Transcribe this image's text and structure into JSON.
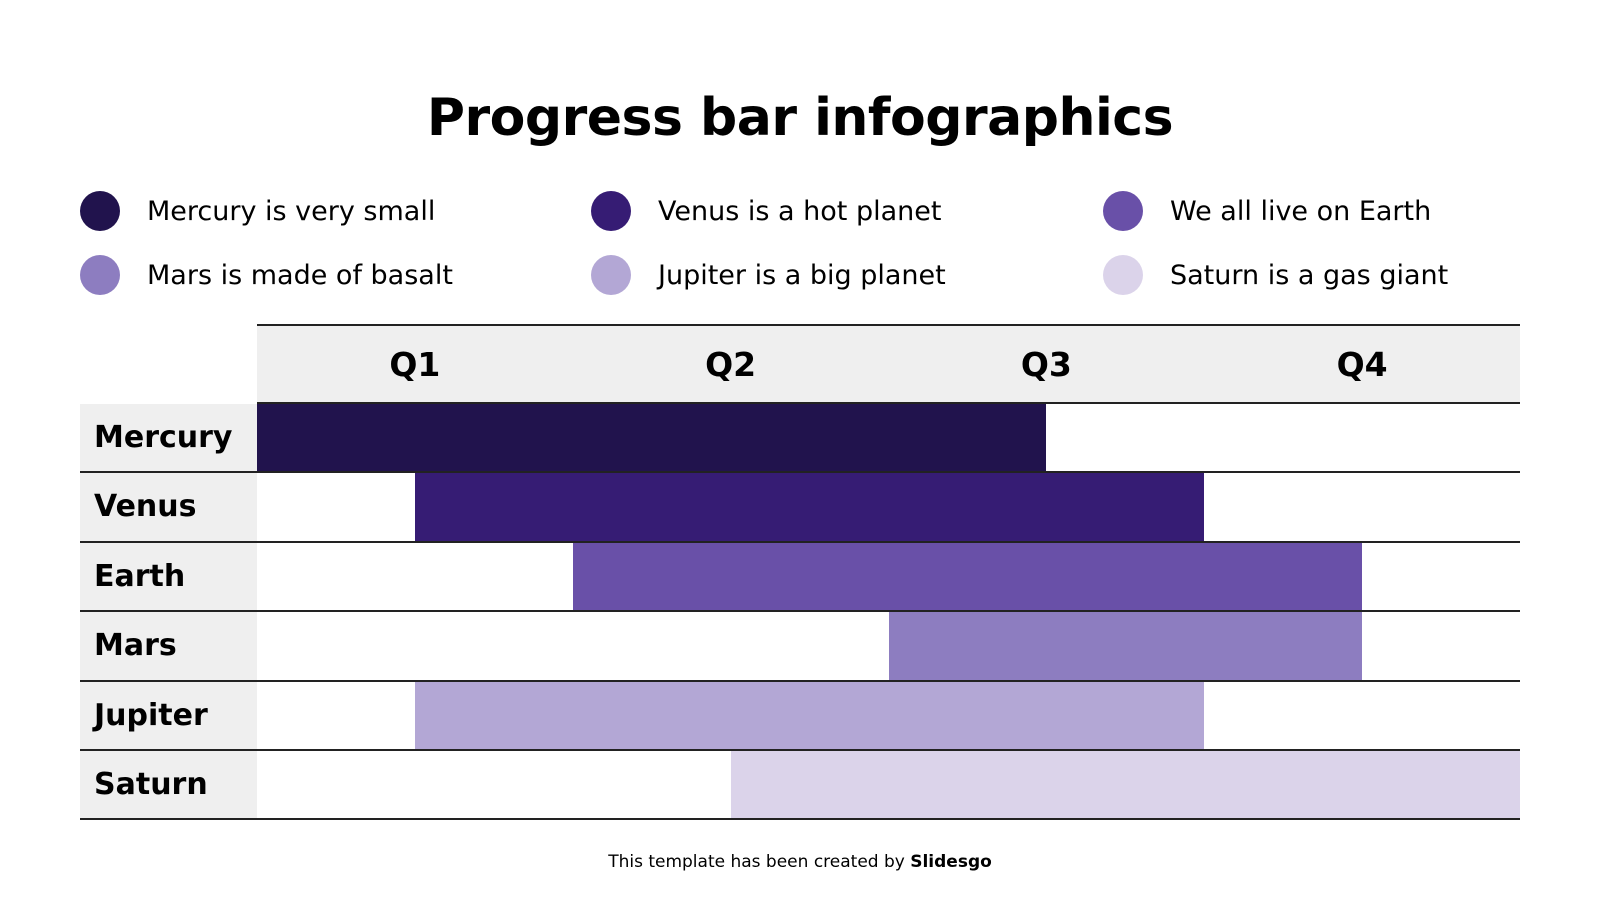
{
  "chart_data": {
    "type": "bar",
    "subtype": "gantt",
    "title": "Progress bar infographics",
    "categories": [
      "Q1",
      "Q2",
      "Q3",
      "Q4"
    ],
    "xlim_quarters": [
      0,
      4
    ],
    "rows": [
      {
        "label": "Mercury",
        "start": 0,
        "end": 2.5,
        "color": "#21134d"
      },
      {
        "label": "Venus",
        "start": 0.5,
        "end": 3,
        "color": "#361c74"
      },
      {
        "label": "Earth",
        "start": 1,
        "end": 3.5,
        "color": "#6950a8"
      },
      {
        "label": "Mars",
        "start": 2,
        "end": 3.5,
        "color": "#8d7dc0"
      },
      {
        "label": "Jupiter",
        "start": 0.5,
        "end": 3,
        "color": "#b3a7d5"
      },
      {
        "label": "Saturn",
        "start": 1.5,
        "end": 4,
        "color": "#dbd3ea"
      }
    ],
    "legend": [
      {
        "text": "Mercury is very small",
        "color": "#21134d"
      },
      {
        "text": "Venus is a hot planet",
        "color": "#361c74"
      },
      {
        "text": "We all live on Earth",
        "color": "#6950a8"
      },
      {
        "text": "Mars is made of basalt",
        "color": "#8d7dc0"
      },
      {
        "text": "Jupiter is a big planet",
        "color": "#b3a7d5"
      },
      {
        "text": "Saturn is a gas giant",
        "color": "#dbd3ea"
      }
    ],
    "legend_placement": "top",
    "header_color": "#efefef"
  },
  "footer": {
    "text": "This template has been created by ",
    "brand": "Slidesgo"
  }
}
